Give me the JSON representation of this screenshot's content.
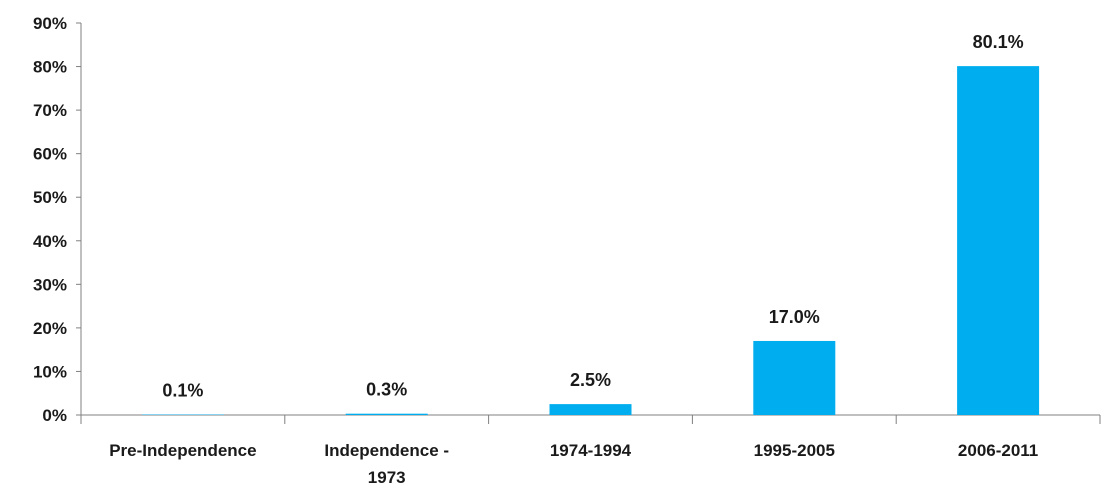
{
  "chart_data": {
    "type": "bar",
    "categories": [
      [
        "Pre-Independence"
      ],
      [
        "Independence -",
        "1973"
      ],
      [
        "1974-1994"
      ],
      [
        "1995-2005"
      ],
      [
        "2006-2011"
      ]
    ],
    "values": [
      0.1,
      0.3,
      2.5,
      17.0,
      80.1
    ],
    "data_labels": [
      "0.1%",
      "0.3%",
      "2.5%",
      "17.0%",
      "80.1%"
    ],
    "y_ticks": [
      "0%",
      "10%",
      "20%",
      "30%",
      "40%",
      "50%",
      "60%",
      "70%",
      "80%",
      "90%"
    ],
    "ylim": [
      0,
      90
    ],
    "grid": false,
    "legend": "none",
    "bar_color": "#00AEEF",
    "axis_color": "#808080"
  }
}
